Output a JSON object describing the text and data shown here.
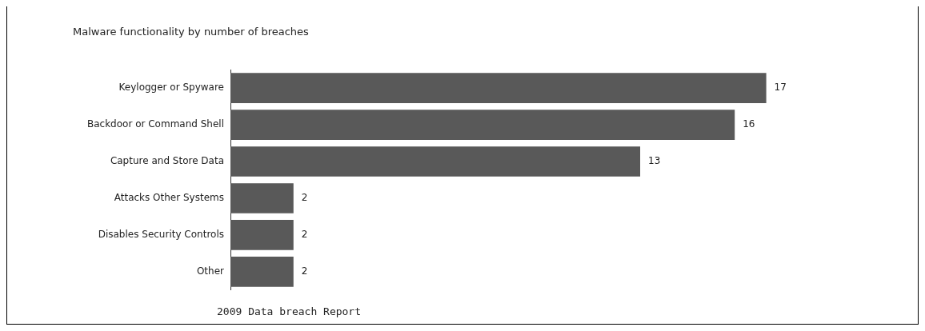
{
  "chart_data": {
    "type": "bar",
    "orientation": "horizontal",
    "title": "Malware functionality by number of breaches",
    "categories": [
      "Keylogger or Spyware",
      "Backdoor or Command Shell",
      "Capture and Store Data",
      "Attacks Other Systems",
      "Disables Security Controls",
      "Other"
    ],
    "values": [
      17,
      16,
      13,
      2,
      2,
      2
    ],
    "color": "#595959",
    "data_labels": true,
    "legend": false,
    "annotations": [
      "2009 Data breach Report"
    ]
  }
}
